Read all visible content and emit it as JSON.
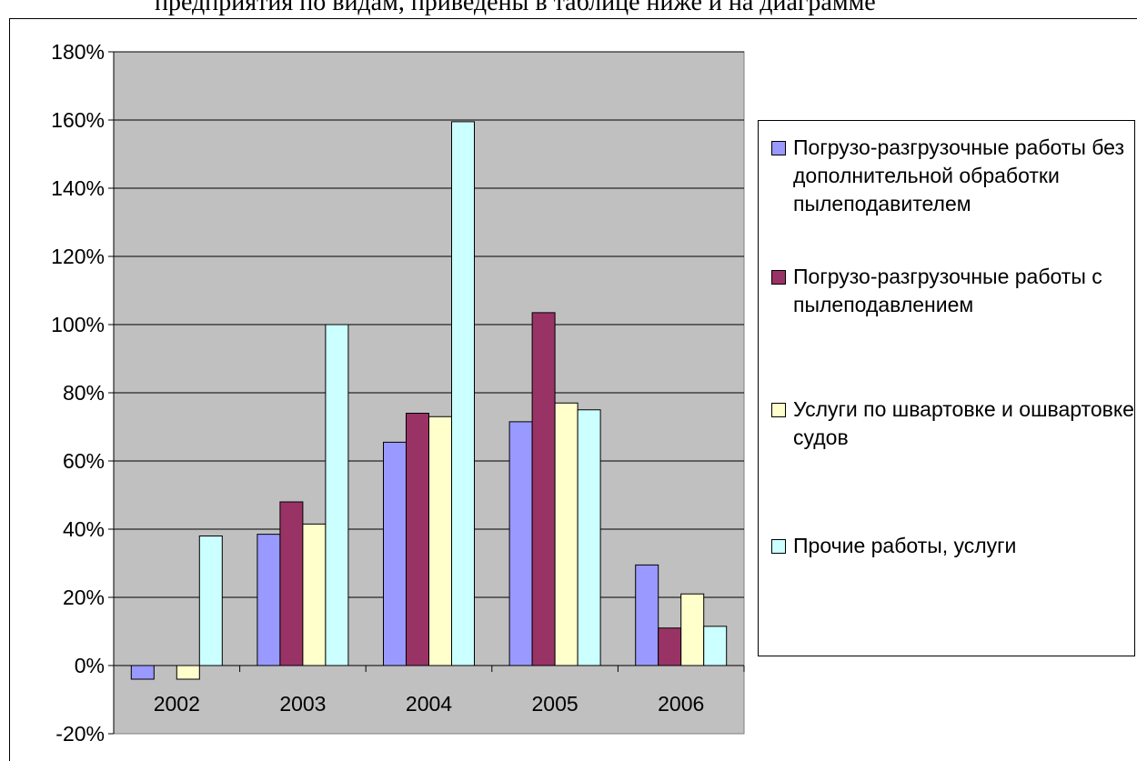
{
  "caption": "предприятия по видам, приведены в таблице ниже и на диаграмме",
  "chart_data": {
    "type": "bar",
    "categories": [
      "2002",
      "2003",
      "2004",
      "2005",
      "2006"
    ],
    "series": [
      {
        "name": "Погрузо-разгрузочные работы без дополнительной обработки пылеподавителем",
        "color": "#9999ff",
        "values": [
          -4,
          38.5,
          65.5,
          71.5,
          29.5
        ]
      },
      {
        "name": "Погрузо-разгрузочные работы с пылеподавлением",
        "color": "#993366",
        "values": [
          0,
          48,
          74,
          103.5,
          11
        ]
      },
      {
        "name": "Услуги по швартовке и ошвартовке судов",
        "color": "#ffffcc",
        "values": [
          -4,
          41.5,
          73,
          77,
          21
        ]
      },
      {
        "name": "Прочие работы, услуги",
        "color": "#ccffff",
        "values": [
          38,
          100,
          159.5,
          75,
          11.5
        ]
      }
    ],
    "ylim": [
      -20,
      180
    ],
    "yticks": [
      -20,
      0,
      20,
      40,
      60,
      80,
      100,
      120,
      140,
      160,
      180
    ],
    "ytick_labels": [
      "-20%",
      "0%",
      "20%",
      "40%",
      "60%",
      "80%",
      "100%",
      "120%",
      "140%",
      "160%",
      "180%"
    ],
    "plot_background": "#c0c0c0",
    "grid": true,
    "legend_position": "right"
  }
}
